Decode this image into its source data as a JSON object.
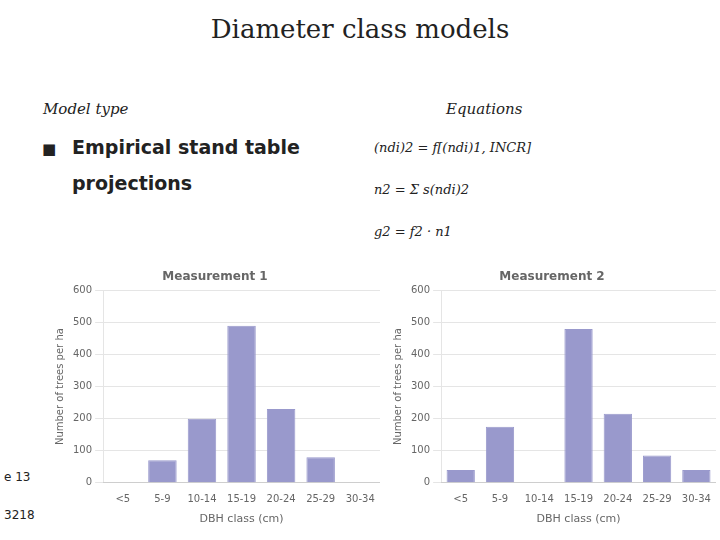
{
  "title": "Diameter class models",
  "annotations": [
    "Model type",
    "Equations",
    "■",
    "Empirical stand table",
    "projections",
    "(ndi)2 = f[(ndi)1, INCR]",
    "n2 = Σ s(ndi)2",
    "g2 = f2 · n1",
    "e 13",
    "3218"
  ],
  "chart_data": [
    {
      "type": "bar",
      "title": "Measurement 1",
      "categories": [
        "<5",
        "5-9",
        "10-14",
        "15-19",
        "20-24",
        "25-29",
        "30-34"
      ],
      "values": [
        0,
        70,
        200,
        490,
        230,
        80,
        0
      ],
      "color": "#9999CC",
      "xlabel": "DBH class (cm)",
      "ylabel": "Number of trees per ha",
      "ylim": [
        0,
        600
      ],
      "yticks": [
        0,
        100,
        200,
        300,
        400,
        500,
        600
      ],
      "grid": true
    },
    {
      "type": "bar",
      "title": "Measurement 2",
      "categories": [
        "<5",
        "5-9",
        "10-14",
        "15-19",
        "20-24",
        "25-29",
        "30-34"
      ],
      "values": [
        40,
        175,
        0,
        480,
        215,
        85,
        40
      ],
      "color": "#9999CC",
      "xlabel": "DBH class (cm)",
      "ylabel": "Number of trees per ha",
      "ylim": [
        0,
        600
      ],
      "yticks": [
        0,
        100,
        200,
        300,
        400,
        500,
        600
      ],
      "grid": true
    }
  ]
}
